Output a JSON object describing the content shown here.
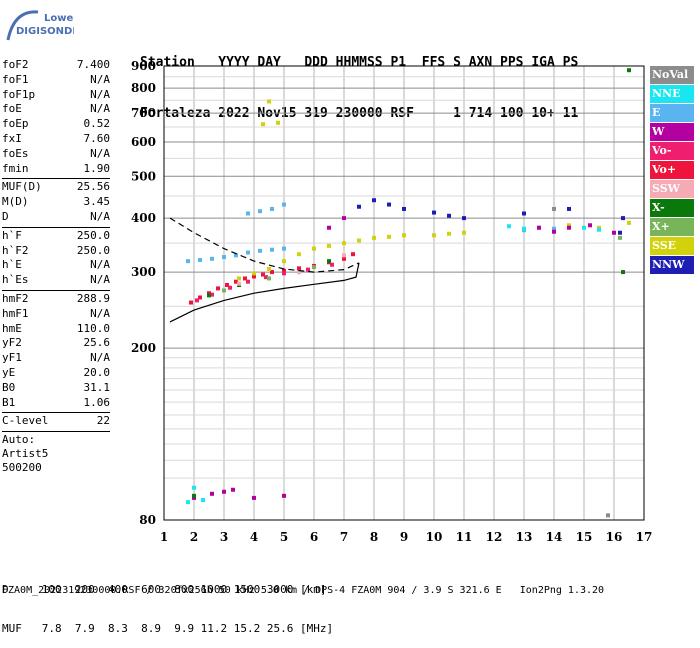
{
  "logo": {
    "line1": "Lowell",
    "line2": "DIGISONDE"
  },
  "header": {
    "row1": "Station   YYYY DAY   DDD HHMMSS P1  FFS S AXN PPS IGA PS",
    "row2": "Fortaleza 2022 Nov15 319 230000 RSF     1 714 100 10+ 11"
  },
  "params": {
    "group1": [
      {
        "name": "foF2",
        "value": "7.400"
      },
      {
        "name": "foF1",
        "value": "N/A"
      },
      {
        "name": "foF1p",
        "value": "N/A"
      },
      {
        "name": "foE",
        "value": "N/A"
      },
      {
        "name": "foEp",
        "value": "0.52"
      },
      {
        "name": "fxI",
        "value": "7.60"
      },
      {
        "name": "foEs",
        "value": "N/A"
      },
      {
        "name": "fmin",
        "value": "1.90"
      }
    ],
    "group2": [
      {
        "name": "MUF(D)",
        "value": "25.56"
      },
      {
        "name": "M(D)",
        "value": "3.45"
      },
      {
        "name": "D",
        "value": "N/A"
      }
    ],
    "group3": [
      {
        "name": "h`F",
        "value": "250.0"
      },
      {
        "name": "h`F2",
        "value": "250.0"
      },
      {
        "name": "h`E",
        "value": "N/A"
      },
      {
        "name": "h`Es",
        "value": "N/A"
      }
    ],
    "group4": [
      {
        "name": "hmF2",
        "value": "288.9"
      },
      {
        "name": "hmF1",
        "value": "N/A"
      },
      {
        "name": "hmE",
        "value": "110.0"
      },
      {
        "name": "yF2",
        "value": "25.6"
      },
      {
        "name": "yF1",
        "value": "N/A"
      },
      {
        "name": "yE",
        "value": "20.0"
      },
      {
        "name": "B0",
        "value": "31.1"
      },
      {
        "name": "B1",
        "value": "1.06"
      }
    ],
    "group5": [
      {
        "name": "C-level",
        "value": "22"
      }
    ],
    "auto": [
      "Auto:",
      "Artist5",
      "500200"
    ]
  },
  "legend": [
    {
      "label": "NoVal",
      "color": "#8c8c8c"
    },
    {
      "label": "NNE",
      "color": "#19e6f0"
    },
    {
      "label": "E",
      "color": "#5ab4f0"
    },
    {
      "label": "W",
      "color": "#b400a0"
    },
    {
      "label": "Vo-",
      "color": "#f01e6e"
    },
    {
      "label": "Vo+",
      "color": "#f0143c"
    },
    {
      "label": "SSW",
      "color": "#f5aab4"
    },
    {
      "label": "X-",
      "color": "#0a780a"
    },
    {
      "label": "X+",
      "color": "#78b45a"
    },
    {
      "label": "SSE",
      "color": "#d2d20a"
    },
    {
      "label": "NNW",
      "color": "#1e1eb4"
    }
  ],
  "chart_data": {
    "type": "scatter",
    "title": "",
    "xlabel": "",
    "ylabel": "",
    "x_ticks": [
      "1",
      "2",
      "3",
      "4",
      "5",
      "6",
      "7",
      "8",
      "9",
      "10",
      "11",
      "12",
      "13",
      "14",
      "15",
      "16",
      "17"
    ],
    "y_ticks": [
      "80",
      "200",
      "300",
      "400",
      "500",
      "600",
      "700",
      "800",
      "900"
    ],
    "xlim": [
      1,
      17
    ],
    "y_scale": "log",
    "ylim": [
      80,
      900
    ],
    "grid": true,
    "series": [
      {
        "name": "E",
        "color": "#5ab4f0",
        "points": [
          [
            1.8,
            318
          ],
          [
            2.2,
            320
          ],
          [
            2.6,
            322
          ],
          [
            3.0,
            325
          ],
          [
            3.4,
            328
          ],
          [
            3.8,
            333
          ],
          [
            4.2,
            336
          ],
          [
            4.6,
            338
          ],
          [
            5.0,
            340
          ],
          [
            3.8,
            410
          ],
          [
            4.2,
            415
          ],
          [
            4.6,
            420
          ],
          [
            5.0,
            430
          ],
          [
            13.0,
            375
          ],
          [
            13.5,
            380
          ],
          [
            14.0,
            378
          ]
        ]
      },
      {
        "name": "Vo+",
        "color": "#f0143c",
        "points": [
          [
            1.9,
            255
          ],
          [
            2.2,
            262
          ],
          [
            2.5,
            268
          ],
          [
            2.8,
            275
          ],
          [
            3.1,
            280
          ],
          [
            3.4,
            285
          ],
          [
            3.7,
            290
          ],
          [
            4.0,
            293
          ],
          [
            4.3,
            296
          ],
          [
            4.6,
            300
          ],
          [
            5.0,
            302
          ],
          [
            5.5,
            306
          ],
          [
            6.0,
            310
          ],
          [
            6.5,
            316
          ],
          [
            7.0,
            322
          ],
          [
            7.3,
            330
          ]
        ]
      },
      {
        "name": "Vo-",
        "color": "#f01e6e",
        "points": [
          [
            2.1,
            258
          ],
          [
            2.6,
            266
          ],
          [
            3.2,
            276
          ],
          [
            3.8,
            285
          ],
          [
            4.4,
            292
          ],
          [
            5.0,
            298
          ],
          [
            5.8,
            304
          ],
          [
            6.6,
            312
          ]
        ]
      },
      {
        "name": "SSE",
        "color": "#d2d20a",
        "points": [
          [
            3.5,
            290
          ],
          [
            4.0,
            298
          ],
          [
            4.5,
            305
          ],
          [
            5.0,
            318
          ],
          [
            5.5,
            330
          ],
          [
            6.0,
            340
          ],
          [
            6.5,
            345
          ],
          [
            7.0,
            350
          ],
          [
            7.5,
            355
          ],
          [
            8.0,
            360
          ],
          [
            8.5,
            362
          ],
          [
            9.0,
            365
          ],
          [
            10.0,
            365
          ],
          [
            10.5,
            368
          ],
          [
            11.0,
            370
          ],
          [
            14.5,
            385
          ],
          [
            15.5,
            380
          ],
          [
            16.5,
            390
          ],
          [
            4.3,
            660
          ],
          [
            4.8,
            665
          ],
          [
            4.5,
            745
          ]
        ]
      },
      {
        "name": "W",
        "color": "#b400a0",
        "points": [
          [
            2.0,
            90
          ],
          [
            2.6,
            92
          ],
          [
            3.0,
            93
          ],
          [
            3.3,
            94
          ],
          [
            4.0,
            90
          ],
          [
            5.0,
            91
          ],
          [
            6.5,
            380
          ],
          [
            7.0,
            400
          ],
          [
            13.5,
            380
          ],
          [
            14.0,
            372
          ],
          [
            14.5,
            380
          ],
          [
            15.2,
            385
          ],
          [
            16.0,
            370
          ]
        ]
      },
      {
        "name": "NNW",
        "color": "#1e1eb4",
        "points": [
          [
            7.5,
            425
          ],
          [
            8.0,
            440
          ],
          [
            8.5,
            430
          ],
          [
            9.0,
            420
          ],
          [
            10.0,
            412
          ],
          [
            10.5,
            405
          ],
          [
            11.0,
            400
          ],
          [
            13.0,
            410
          ],
          [
            14.5,
            420
          ],
          [
            16.2,
            370
          ],
          [
            16.3,
            400
          ]
        ]
      },
      {
        "name": "NNE",
        "color": "#19e6f0",
        "points": [
          [
            1.8,
            88
          ],
          [
            2.0,
            95
          ],
          [
            2.3,
            89
          ],
          [
            12.5,
            383
          ],
          [
            13.0,
            378
          ],
          [
            15.0,
            380
          ],
          [
            15.5,
            376
          ]
        ]
      },
      {
        "name": "X-",
        "color": "#0a780a",
        "points": [
          [
            2.0,
            91
          ],
          [
            2.5,
            265
          ],
          [
            3.5,
            280
          ],
          [
            5.5,
            300
          ],
          [
            6.5,
            318
          ],
          [
            16.3,
            300
          ],
          [
            16.5,
            880
          ]
        ]
      },
      {
        "name": "X+",
        "color": "#78b45a",
        "points": [
          [
            3.0,
            272
          ],
          [
            4.5,
            290
          ],
          [
            6.0,
            308
          ],
          [
            16.2,
            360
          ]
        ]
      },
      {
        "name": "SSW",
        "color": "#f5aab4",
        "points": [
          [
            3.5,
            282
          ],
          [
            5.5,
            300
          ],
          [
            7.0,
            328
          ]
        ]
      },
      {
        "name": "NoVal",
        "color": "#8c8c8c",
        "points": [
          [
            14.0,
            420
          ],
          [
            15.8,
            82
          ]
        ]
      }
    ],
    "trace_upper": [
      [
        1.2,
        400
      ],
      [
        2.0,
        370
      ],
      [
        3.0,
        340
      ],
      [
        4.0,
        318
      ],
      [
        5.0,
        305
      ],
      [
        6.0,
        300
      ],
      [
        7.0,
        304
      ],
      [
        7.5,
        315
      ]
    ],
    "trace_lower": [
      [
        1.2,
        230
      ],
      [
        2.0,
        245
      ],
      [
        3.0,
        258
      ],
      [
        4.0,
        268
      ],
      [
        5.0,
        275
      ],
      [
        6.0,
        281
      ],
      [
        7.0,
        287
      ],
      [
        7.4,
        292
      ],
      [
        7.5,
        315
      ]
    ]
  },
  "footer": {
    "d_label": "D  ",
    "d_values": "   100  200  400  600  800 1000 1500 3000 [km]",
    "muf_label": "MUF",
    "muf_values": "   7.8  7.9  8.3  8.9  9.9 11.2 15.2 25.6 [MHz]",
    "file_line": "FZA0M_2022319230000.RSF / 320fx256h 50 kHz 5.0 km / DPS-4 FZA0M 904 / 3.9 S 321.6 E   Ion2Png 1.3.20"
  }
}
